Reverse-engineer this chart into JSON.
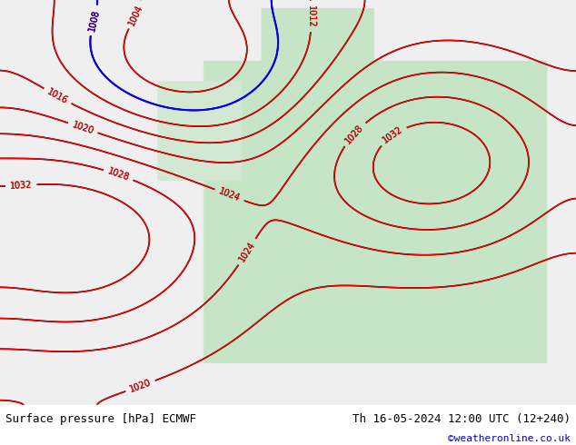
{
  "title_left": "Surface pressure [hPa] ECMWF",
  "title_right": "Th 16-05-2024 12:00 UTC (12+240)",
  "watermark": "©weatheronline.co.uk",
  "bg_color_land": "#c8e6c8",
  "bg_color_sea": "#f0f0f0",
  "fig_width": 6.34,
  "fig_height": 4.9,
  "dpi": 100,
  "bottom_bar_color": "#e8e8e8",
  "bottom_text_color": "#000000",
  "watermark_color": "#0000cc"
}
